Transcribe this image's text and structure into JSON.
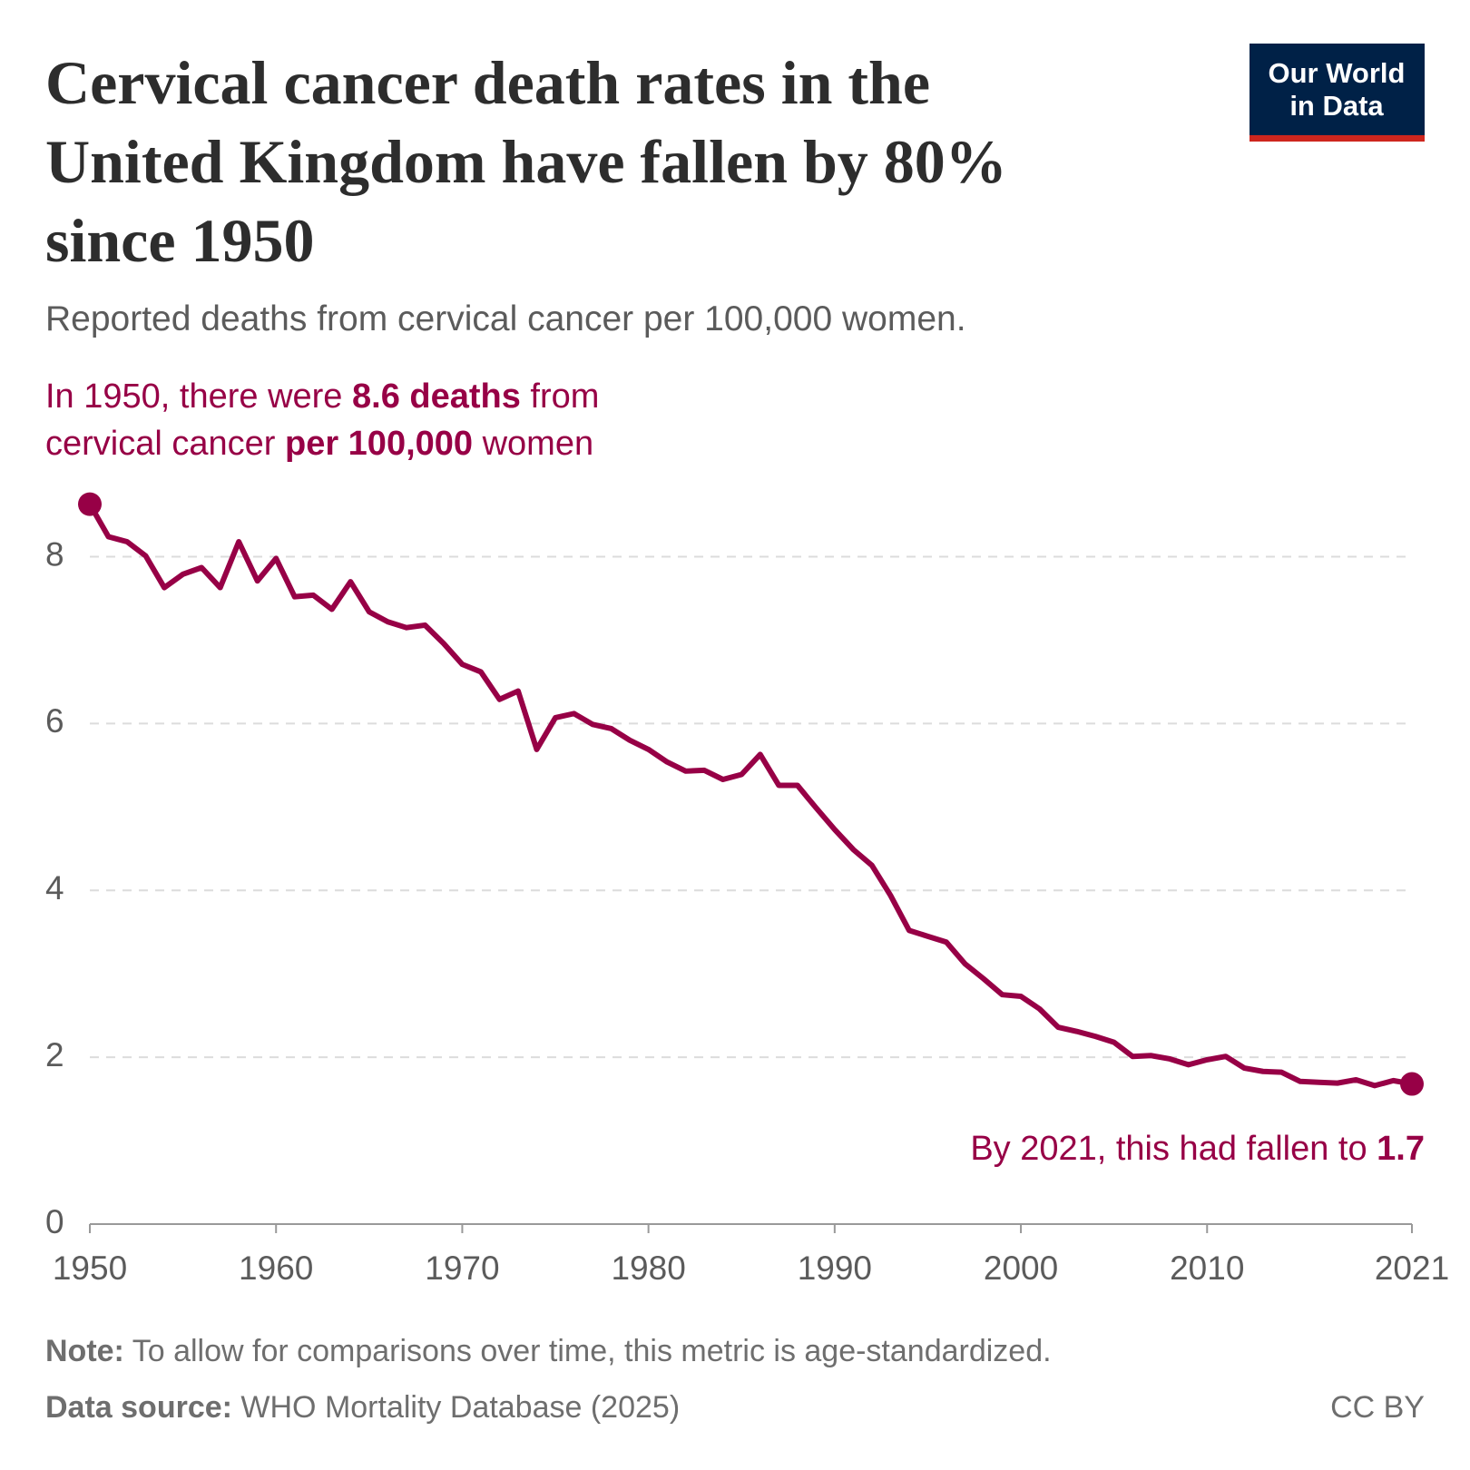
{
  "chart_data": {
    "type": "line",
    "title": [
      "Cervical cancer death rates in the",
      "United Kingdom have fallen by 80%",
      "since 1950"
    ],
    "subtitle": "Reported deaths from cervical cancer per 100,000 women.",
    "annotation_start": [
      [
        {
          "text": "In 1950, there were ",
          "bold": false
        },
        {
          "text": "8.6 deaths",
          "bold": true
        },
        {
          "text": " from",
          "bold": false
        }
      ],
      [
        {
          "text": "cervical cancer ",
          "bold": false
        },
        {
          "text": "per 100,000",
          "bold": true
        },
        {
          "text": " women",
          "bold": false
        }
      ]
    ],
    "annotation_end": [
      {
        "text": "By 2021, this had fallen to ",
        "bold": false
      },
      {
        "text": "1.7",
        "bold": true
      }
    ],
    "x": [
      1950,
      1951,
      1952,
      1953,
      1954,
      1955,
      1956,
      1957,
      1958,
      1959,
      1960,
      1961,
      1962,
      1963,
      1964,
      1965,
      1966,
      1967,
      1968,
      1969,
      1970,
      1971,
      1972,
      1973,
      1974,
      1975,
      1976,
      1977,
      1978,
      1979,
      1980,
      1981,
      1982,
      1983,
      1984,
      1985,
      1986,
      1987,
      1988,
      1989,
      1990,
      1991,
      1992,
      1993,
      1994,
      1995,
      1996,
      1997,
      1998,
      1999,
      2000,
      2001,
      2002,
      2003,
      2004,
      2005,
      2006,
      2007,
      2008,
      2009,
      2010,
      2011,
      2012,
      2013,
      2014,
      2015,
      2016,
      2017,
      2018,
      2019,
      2020,
      2021
    ],
    "series": [
      {
        "name": "United Kingdom",
        "color": "#970046",
        "values": [
          8.63,
          8.24,
          8.18,
          8.01,
          7.63,
          7.79,
          7.87,
          7.63,
          8.18,
          7.71,
          7.98,
          7.52,
          7.54,
          7.37,
          7.7,
          7.34,
          7.22,
          7.15,
          7.18,
          6.96,
          6.71,
          6.62,
          6.29,
          6.39,
          5.69,
          6.07,
          6.12,
          5.99,
          5.94,
          5.8,
          5.69,
          5.54,
          5.43,
          5.44,
          5.33,
          5.39,
          5.63,
          5.26,
          5.26,
          4.99,
          4.73,
          4.49,
          4.3,
          3.94,
          3.52,
          3.45,
          3.38,
          3.12,
          2.94,
          2.75,
          2.73,
          2.58,
          2.36,
          2.31,
          2.25,
          2.18,
          2.01,
          2.02,
          1.98,
          1.91,
          1.97,
          2.01,
          1.87,
          1.83,
          1.82,
          1.71,
          1.7,
          1.69,
          1.73,
          1.66,
          1.72,
          1.68
        ]
      }
    ],
    "xlim": [
      1950,
      2021
    ],
    "xticks": [
      1950,
      1960,
      1970,
      1980,
      1990,
      2000,
      2010,
      2021
    ],
    "ylim": [
      0,
      8.8
    ],
    "yticks": [
      0,
      2,
      4,
      6,
      8
    ],
    "grid": true,
    "note": {
      "label": "Note:",
      "text": " To allow for comparisons over time, this metric is age-standardized."
    },
    "source": {
      "label": "Data source:",
      "text": " WHO Mortality Database (2025)"
    },
    "license": "CC BY",
    "logo": [
      "Our World",
      "in Data"
    ]
  }
}
